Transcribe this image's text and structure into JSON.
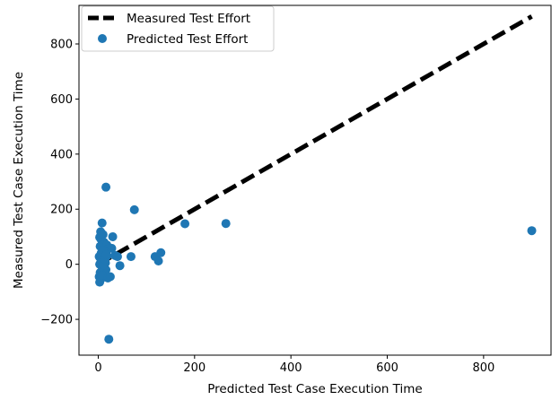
{
  "chart_data": {
    "type": "scatter",
    "xlabel": "Predicted Test Case Execution Time",
    "ylabel": "Measured Test Case Execution Time",
    "xlim": [
      -40,
      940
    ],
    "ylim": [
      -330,
      940
    ],
    "xticks": [
      0,
      200,
      400,
      600,
      800
    ],
    "yticks": [
      -200,
      0,
      200,
      400,
      600,
      800
    ],
    "xtick_labels": [
      "0",
      "200",
      "400",
      "600",
      "800"
    ],
    "ytick_labels": [
      "−200",
      "0",
      "200",
      "400",
      "600",
      "800"
    ],
    "grid": false,
    "legend_position": "top-left",
    "series": [
      {
        "name": "Measured Test Effort",
        "kind": "line",
        "style": "dashed",
        "color": "#000000",
        "points": [
          [
            0,
            0
          ],
          [
            900,
            900
          ]
        ]
      },
      {
        "name": "Predicted Test Effort",
        "kind": "scatter",
        "color": "#1f77b4",
        "points": [
          [
            5,
            118
          ],
          [
            8,
            150
          ],
          [
            16,
            280
          ],
          [
            75,
            198
          ],
          [
            180,
            147
          ],
          [
            265,
            148
          ],
          [
            900,
            122
          ],
          [
            3,
            98
          ],
          [
            6,
            90
          ],
          [
            10,
            108
          ],
          [
            12,
            80
          ],
          [
            15,
            60
          ],
          [
            8,
            70
          ],
          [
            4,
            65
          ],
          [
            18,
            70
          ],
          [
            20,
            55
          ],
          [
            28,
            58
          ],
          [
            30,
            100
          ],
          [
            14,
            45
          ],
          [
            6,
            40
          ],
          [
            2,
            28
          ],
          [
            5,
            20
          ],
          [
            9,
            15
          ],
          [
            12,
            10
          ],
          [
            15,
            5
          ],
          [
            3,
            0
          ],
          [
            7,
            -5
          ],
          [
            10,
            -10
          ],
          [
            13,
            -15
          ],
          [
            16,
            -20
          ],
          [
            4,
            -30
          ],
          [
            2,
            -45
          ],
          [
            5,
            -55
          ],
          [
            3,
            -65
          ],
          [
            8,
            -40
          ],
          [
            20,
            -50
          ],
          [
            25,
            -45
          ],
          [
            35,
            32
          ],
          [
            40,
            28
          ],
          [
            45,
            -5
          ],
          [
            68,
            28
          ],
          [
            118,
            28
          ],
          [
            125,
            12
          ],
          [
            130,
            42
          ],
          [
            22,
            -272
          ],
          [
            12,
            25
          ],
          [
            18,
            30
          ],
          [
            6,
            5
          ],
          [
            11,
            -2
          ],
          [
            14,
            18
          ],
          [
            9,
            50
          ],
          [
            17,
            35
          ]
        ]
      }
    ]
  }
}
